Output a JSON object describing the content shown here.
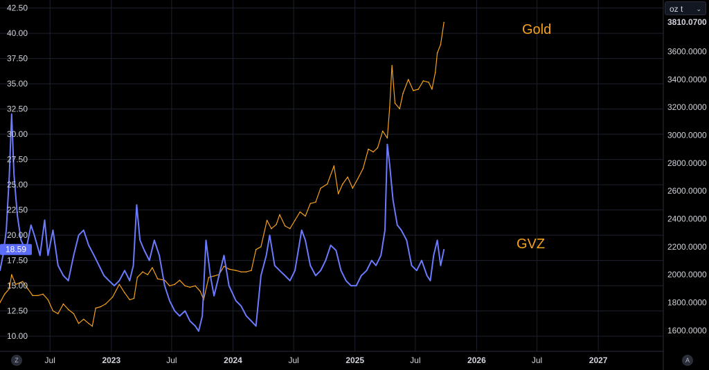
{
  "unit_selector": {
    "label": "oz t",
    "icon": "chevron-down-icon"
  },
  "corner_buttons": {
    "left": "Z",
    "right": "A"
  },
  "current_value_badge": {
    "text": "18.59",
    "color": "#5b6cf9"
  },
  "colors": {
    "gvz": "#6b7bff",
    "gold": "#f7a21b",
    "grid": "#1e222d",
    "background": "#000000"
  },
  "chart_data": {
    "type": "line",
    "x_axis": {
      "tick_labels": [
        "Jul",
        "2023",
        "Jul",
        "2024",
        "Jul",
        "2025",
        "Jul",
        "2026",
        "Jul",
        "2027"
      ],
      "range": [
        "2022-02-01",
        "2027-07-15"
      ]
    },
    "left_axis": {
      "tick_labels": [
        "42.50",
        "40.00",
        "37.50",
        "35.00",
        "32.50",
        "30.00",
        "27.50",
        "25.00",
        "22.50",
        "20.00",
        "17.50",
        "15.00",
        "12.50",
        "10.00"
      ],
      "range": [
        8.5,
        43.3
      ]
    },
    "right_axis": {
      "tick_labels": [
        "3810.0700",
        "3600.0000",
        "3400.0000",
        "3200.0000",
        "3000.0000",
        "2800.0000",
        "2600.0000",
        "2400.0000",
        "2200.0000",
        "2000.0000",
        "1800.0000",
        "1600.0000"
      ],
      "range": [
        1450,
        3970
      ]
    },
    "annotations": [
      {
        "text": "Gold",
        "series": "Gold"
      },
      {
        "text": "GVZ",
        "series": "GVZ"
      }
    ],
    "series": [
      {
        "name": "GVZ",
        "axis": "left",
        "points": [
          [
            "2022-02-01",
            16.5
          ],
          [
            "2022-02-10",
            18.0
          ],
          [
            "2022-02-20",
            20.5
          ],
          [
            "2022-03-01",
            26.0
          ],
          [
            "2022-03-08",
            32.0
          ],
          [
            "2022-03-15",
            26.0
          ],
          [
            "2022-03-25",
            22.0
          ],
          [
            "2022-04-05",
            19.5
          ],
          [
            "2022-04-20",
            18.5
          ],
          [
            "2022-05-05",
            21.0
          ],
          [
            "2022-05-15",
            20.0
          ],
          [
            "2022-06-01",
            18.0
          ],
          [
            "2022-06-15",
            21.5
          ],
          [
            "2022-06-25",
            18.0
          ],
          [
            "2022-07-10",
            20.5
          ],
          [
            "2022-07-25",
            17.0
          ],
          [
            "2022-08-10",
            16.0
          ],
          [
            "2022-08-25",
            15.5
          ],
          [
            "2022-09-10",
            18.0
          ],
          [
            "2022-09-25",
            20.0
          ],
          [
            "2022-10-10",
            20.5
          ],
          [
            "2022-10-25",
            19.0
          ],
          [
            "2022-11-10",
            18.0
          ],
          [
            "2022-11-25",
            17.0
          ],
          [
            "2022-12-10",
            16.0
          ],
          [
            "2022-12-25",
            15.5
          ],
          [
            "2023-01-10",
            15.0
          ],
          [
            "2023-01-25",
            15.5
          ],
          [
            "2023-02-10",
            16.5
          ],
          [
            "2023-02-25",
            15.5
          ],
          [
            "2023-03-08",
            17.0
          ],
          [
            "2023-03-18",
            23.0
          ],
          [
            "2023-03-28",
            19.5
          ],
          [
            "2023-04-10",
            18.5
          ],
          [
            "2023-04-25",
            17.5
          ],
          [
            "2023-05-10",
            19.5
          ],
          [
            "2023-05-25",
            18.0
          ],
          [
            "2023-06-10",
            15.0
          ],
          [
            "2023-06-25",
            13.5
          ],
          [
            "2023-07-10",
            12.5
          ],
          [
            "2023-07-25",
            12.0
          ],
          [
            "2023-08-10",
            12.5
          ],
          [
            "2023-08-25",
            11.5
          ],
          [
            "2023-09-10",
            11.0
          ],
          [
            "2023-09-20",
            10.5
          ],
          [
            "2023-10-01",
            12.0
          ],
          [
            "2023-10-12",
            19.5
          ],
          [
            "2023-10-25",
            16.0
          ],
          [
            "2023-11-05",
            14.0
          ],
          [
            "2023-11-20",
            16.0
          ],
          [
            "2023-12-05",
            18.0
          ],
          [
            "2023-12-20",
            15.0
          ],
          [
            "2024-01-10",
            13.5
          ],
          [
            "2024-01-25",
            13.0
          ],
          [
            "2024-02-10",
            12.0
          ],
          [
            "2024-02-25",
            11.5
          ],
          [
            "2024-03-10",
            11.0
          ],
          [
            "2024-03-25",
            16.0
          ],
          [
            "2024-04-10",
            18.0
          ],
          [
            "2024-04-20",
            20.0
          ],
          [
            "2024-05-05",
            17.0
          ],
          [
            "2024-05-20",
            16.5
          ],
          [
            "2024-06-05",
            16.0
          ],
          [
            "2024-06-20",
            15.5
          ],
          [
            "2024-07-05",
            16.5
          ],
          [
            "2024-07-25",
            20.5
          ],
          [
            "2024-08-05",
            19.5
          ],
          [
            "2024-08-20",
            17.0
          ],
          [
            "2024-09-05",
            16.0
          ],
          [
            "2024-09-20",
            16.5
          ],
          [
            "2024-10-05",
            17.5
          ],
          [
            "2024-10-20",
            19.0
          ],
          [
            "2024-11-05",
            18.5
          ],
          [
            "2024-11-20",
            16.5
          ],
          [
            "2024-12-05",
            15.5
          ],
          [
            "2024-12-20",
            15.0
          ],
          [
            "2025-01-05",
            15.0
          ],
          [
            "2025-01-20",
            16.0
          ],
          [
            "2025-02-05",
            16.5
          ],
          [
            "2025-02-20",
            17.5
          ],
          [
            "2025-03-05",
            17.0
          ],
          [
            "2025-03-20",
            18.0
          ],
          [
            "2025-04-01",
            20.5
          ],
          [
            "2025-04-08",
            29.0
          ],
          [
            "2025-04-15",
            27.0
          ],
          [
            "2025-04-25",
            23.5
          ],
          [
            "2025-05-08",
            21.0
          ],
          [
            "2025-05-20",
            20.5
          ],
          [
            "2025-06-05",
            19.5
          ],
          [
            "2025-06-20",
            17.0
          ],
          [
            "2025-07-05",
            16.5
          ],
          [
            "2025-07-20",
            17.5
          ],
          [
            "2025-08-05",
            16.0
          ],
          [
            "2025-08-15",
            15.5
          ],
          [
            "2025-08-25",
            18.0
          ],
          [
            "2025-09-05",
            19.5
          ],
          [
            "2025-09-15",
            17.0
          ],
          [
            "2025-09-25",
            18.59
          ]
        ]
      },
      {
        "name": "Gold",
        "axis": "right",
        "points": [
          [
            "2022-02-01",
            1800
          ],
          [
            "2022-02-15",
            1860
          ],
          [
            "2022-03-01",
            1900
          ],
          [
            "2022-03-08",
            2000
          ],
          [
            "2022-03-20",
            1930
          ],
          [
            "2022-04-10",
            1950
          ],
          [
            "2022-04-25",
            1900
          ],
          [
            "2022-05-10",
            1850
          ],
          [
            "2022-05-25",
            1850
          ],
          [
            "2022-06-10",
            1860
          ],
          [
            "2022-06-25",
            1820
          ],
          [
            "2022-07-10",
            1740
          ],
          [
            "2022-07-25",
            1720
          ],
          [
            "2022-08-10",
            1790
          ],
          [
            "2022-08-25",
            1750
          ],
          [
            "2022-09-10",
            1720
          ],
          [
            "2022-09-25",
            1650
          ],
          [
            "2022-10-10",
            1680
          ],
          [
            "2022-10-25",
            1650
          ],
          [
            "2022-11-05",
            1630
          ],
          [
            "2022-11-15",
            1760
          ],
          [
            "2022-11-30",
            1770
          ],
          [
            "2022-12-15",
            1790
          ],
          [
            "2023-01-05",
            1840
          ],
          [
            "2023-01-25",
            1930
          ],
          [
            "2023-02-10",
            1870
          ],
          [
            "2023-02-25",
            1820
          ],
          [
            "2023-03-10",
            1830
          ],
          [
            "2023-03-20",
            1980
          ],
          [
            "2023-04-05",
            2020
          ],
          [
            "2023-04-20",
            2000
          ],
          [
            "2023-05-04",
            2050
          ],
          [
            "2023-05-20",
            1970
          ],
          [
            "2023-06-10",
            1960
          ],
          [
            "2023-06-25",
            1920
          ],
          [
            "2023-07-10",
            1930
          ],
          [
            "2023-07-25",
            1960
          ],
          [
            "2023-08-10",
            1920
          ],
          [
            "2023-08-25",
            1910
          ],
          [
            "2023-09-10",
            1920
          ],
          [
            "2023-09-25",
            1880
          ],
          [
            "2023-10-05",
            1820
          ],
          [
            "2023-10-20",
            1980
          ],
          [
            "2023-11-05",
            1990
          ],
          [
            "2023-11-20",
            2000
          ],
          [
            "2023-12-05",
            2060
          ],
          [
            "2023-12-20",
            2040
          ],
          [
            "2024-01-10",
            2030
          ],
          [
            "2024-01-25",
            2020
          ],
          [
            "2024-02-10",
            2020
          ],
          [
            "2024-02-25",
            2030
          ],
          [
            "2024-03-10",
            2180
          ],
          [
            "2024-03-25",
            2200
          ],
          [
            "2024-04-12",
            2390
          ],
          [
            "2024-04-25",
            2330
          ],
          [
            "2024-05-10",
            2360
          ],
          [
            "2024-05-20",
            2430
          ],
          [
            "2024-06-05",
            2350
          ],
          [
            "2024-06-20",
            2330
          ],
          [
            "2024-07-05",
            2390
          ],
          [
            "2024-07-20",
            2450
          ],
          [
            "2024-08-05",
            2420
          ],
          [
            "2024-08-20",
            2510
          ],
          [
            "2024-09-05",
            2520
          ],
          [
            "2024-09-20",
            2620
          ],
          [
            "2024-10-10",
            2650
          ],
          [
            "2024-10-30",
            2780
          ],
          [
            "2024-11-12",
            2580
          ],
          [
            "2024-11-25",
            2650
          ],
          [
            "2024-12-10",
            2700
          ],
          [
            "2024-12-25",
            2620
          ],
          [
            "2025-01-10",
            2690
          ],
          [
            "2025-01-25",
            2760
          ],
          [
            "2025-02-10",
            2900
          ],
          [
            "2025-02-25",
            2880
          ],
          [
            "2025-03-10",
            2910
          ],
          [
            "2025-03-25",
            3030
          ],
          [
            "2025-04-08",
            2980
          ],
          [
            "2025-04-15",
            3200
          ],
          [
            "2025-04-22",
            3500
          ],
          [
            "2025-05-01",
            3230
          ],
          [
            "2025-05-15",
            3190
          ],
          [
            "2025-05-25",
            3300
          ],
          [
            "2025-06-10",
            3400
          ],
          [
            "2025-06-25",
            3320
          ],
          [
            "2025-07-10",
            3330
          ],
          [
            "2025-07-25",
            3390
          ],
          [
            "2025-08-10",
            3380
          ],
          [
            "2025-08-20",
            3330
          ],
          [
            "2025-08-30",
            3450
          ],
          [
            "2025-09-05",
            3590
          ],
          [
            "2025-09-15",
            3650
          ],
          [
            "2025-09-25",
            3810.07
          ]
        ]
      }
    ]
  }
}
